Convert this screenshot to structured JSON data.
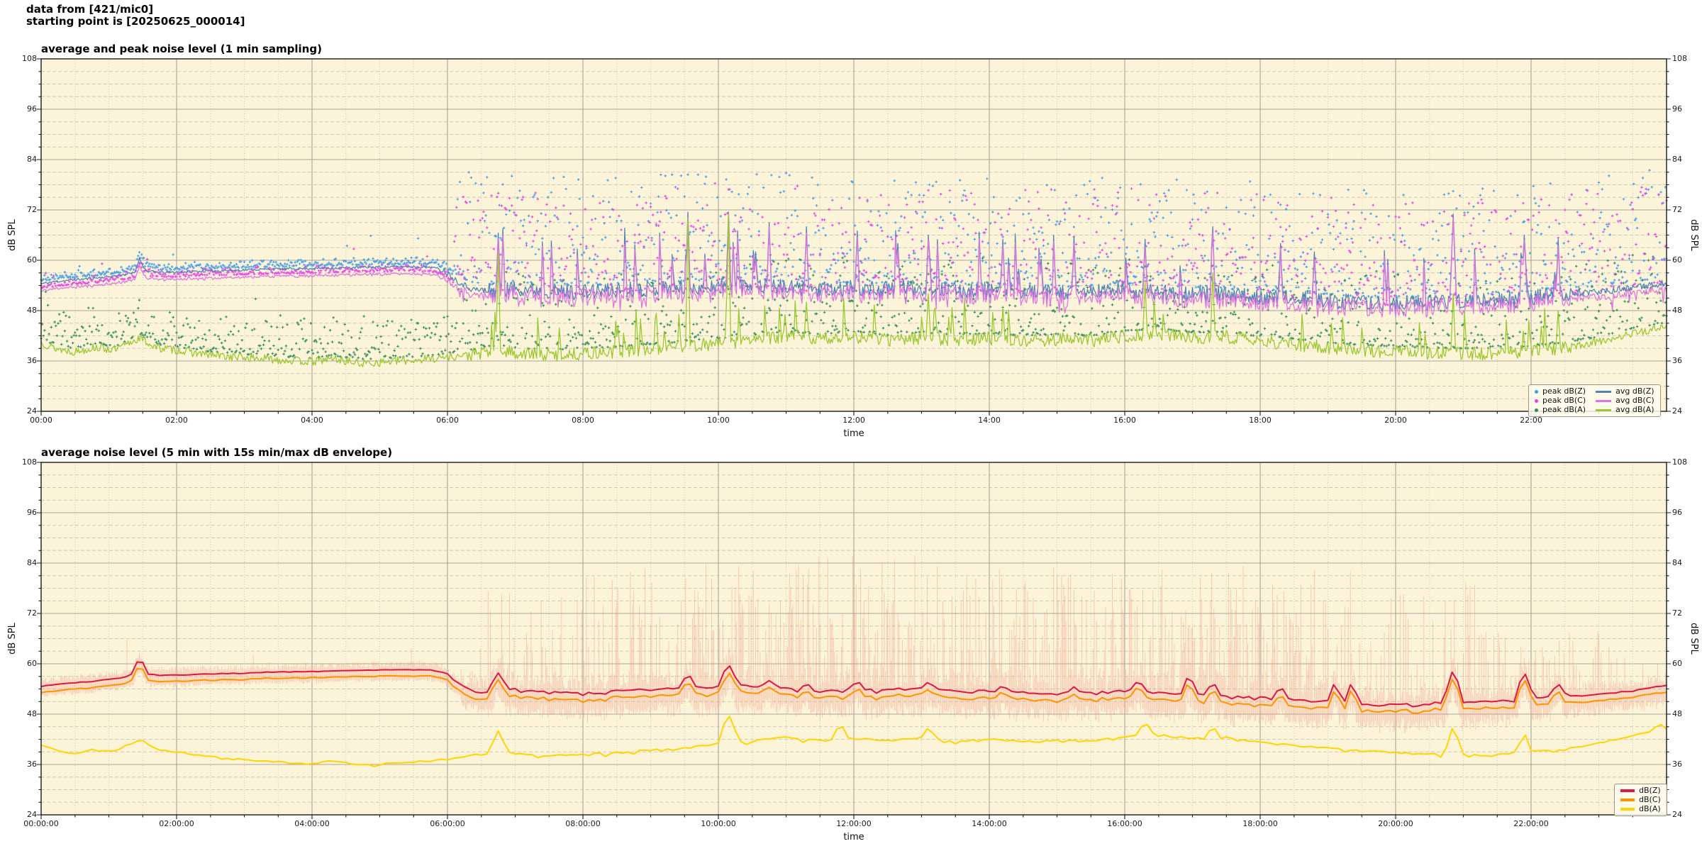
{
  "header": {
    "line1": "data from [421/mic0]",
    "line2": "starting point is [20250625_000014]"
  },
  "style": {
    "plot_bg": "#fcf4d8",
    "grid_major": "#a9a59b",
    "grid_minor": "#ccc8ba",
    "spine": "#1a1a1a",
    "tick_color": "#1a1a1a"
  },
  "anchors": {
    "z": [
      [
        0,
        54.4
      ],
      [
        0.2,
        54.9
      ],
      [
        0.45,
        55.3
      ],
      [
        0.7,
        55.6
      ],
      [
        1.0,
        56.1
      ],
      [
        1.2,
        56.5
      ],
      [
        1.38,
        57.0
      ],
      [
        1.45,
        60.4
      ],
      [
        1.55,
        57.4
      ],
      [
        1.8,
        57.1
      ],
      [
        2.2,
        57.3
      ],
      [
        2.6,
        57.5
      ],
      [
        3.0,
        57.7
      ],
      [
        3.4,
        57.9
      ],
      [
        3.8,
        58.0
      ],
      [
        4.2,
        58.1
      ],
      [
        4.6,
        58.25
      ],
      [
        5.0,
        58.4
      ],
      [
        5.4,
        58.5
      ],
      [
        5.75,
        58.4
      ],
      [
        5.95,
        57.6
      ],
      [
        6.15,
        55.0
      ],
      [
        6.35,
        53.2
      ],
      [
        6.55,
        52.6
      ],
      [
        6.75,
        53.0
      ],
      [
        7.0,
        53.4
      ],
      [
        7.3,
        53.0
      ],
      [
        7.6,
        52.6
      ],
      [
        8.0,
        52.4
      ],
      [
        8.4,
        52.8
      ],
      [
        8.8,
        53.2
      ],
      [
        9.2,
        53.4
      ],
      [
        9.6,
        53.6
      ],
      [
        10.0,
        54.0
      ],
      [
        10.4,
        54.2
      ],
      [
        10.8,
        53.8
      ],
      [
        11.2,
        53.2
      ],
      [
        11.6,
        52.8
      ],
      [
        12.0,
        53.4
      ],
      [
        12.4,
        53.0
      ],
      [
        12.8,
        53.6
      ],
      [
        13.2,
        53.2
      ],
      [
        13.6,
        52.8
      ],
      [
        14.0,
        53.0
      ],
      [
        14.4,
        52.6
      ],
      [
        14.8,
        52.4
      ],
      [
        15.2,
        52.2
      ],
      [
        15.6,
        52.6
      ],
      [
        16.0,
        53.0
      ],
      [
        16.4,
        52.6
      ],
      [
        16.8,
        52.2
      ],
      [
        17.2,
        52.0
      ],
      [
        17.6,
        51.6
      ],
      [
        18.0,
        51.4
      ],
      [
        18.4,
        51.0
      ],
      [
        18.8,
        50.6
      ],
      [
        19.2,
        50.2
      ],
      [
        19.6,
        49.8
      ],
      [
        20.0,
        49.6
      ],
      [
        20.4,
        49.8
      ],
      [
        20.8,
        50.4
      ],
      [
        21.2,
        50.2
      ],
      [
        21.6,
        50.6
      ],
      [
        22.0,
        51.2
      ],
      [
        22.4,
        52.0
      ],
      [
        22.8,
        52.2
      ],
      [
        23.2,
        52.8
      ],
      [
        23.6,
        53.6
      ],
      [
        24,
        54.6
      ]
    ],
    "a": [
      [
        0,
        40.5
      ],
      [
        0.2,
        39.0
      ],
      [
        0.5,
        38.2
      ],
      [
        0.8,
        39.3
      ],
      [
        1.1,
        38.6
      ],
      [
        1.45,
        41.5
      ],
      [
        1.7,
        39.2
      ],
      [
        2.0,
        38.6
      ],
      [
        2.4,
        37.6
      ],
      [
        2.8,
        37.0
      ],
      [
        3.2,
        36.6
      ],
      [
        3.6,
        36.2
      ],
      [
        4.0,
        35.8
      ],
      [
        4.3,
        36.6
      ],
      [
        4.7,
        35.4
      ],
      [
        5.1,
        35.8
      ],
      [
        5.5,
        36.2
      ],
      [
        5.9,
        36.8
      ],
      [
        6.2,
        37.2
      ],
      [
        6.5,
        37.8
      ],
      [
        6.75,
        38.5
      ],
      [
        7.1,
        37.8
      ],
      [
        7.5,
        37.4
      ],
      [
        8.0,
        37.8
      ],
      [
        8.5,
        38.2
      ],
      [
        9.0,
        38.8
      ],
      [
        9.5,
        39.4
      ],
      [
        10.0,
        40.2
      ],
      [
        10.5,
        41.0
      ],
      [
        11.0,
        41.8
      ],
      [
        11.5,
        41.2
      ],
      [
        12.0,
        41.8
      ],
      [
        12.5,
        41.0
      ],
      [
        13.0,
        41.6
      ],
      [
        13.5,
        41.0
      ],
      [
        14.0,
        41.4
      ],
      [
        14.5,
        40.8
      ],
      [
        15.0,
        41.2
      ],
      [
        15.5,
        40.8
      ],
      [
        16.0,
        42.0
      ],
      [
        16.5,
        42.4
      ],
      [
        17.0,
        41.6
      ],
      [
        17.5,
        41.8
      ],
      [
        18.0,
        40.6
      ],
      [
        18.5,
        40.0
      ],
      [
        19.0,
        39.2
      ],
      [
        19.5,
        38.6
      ],
      [
        20.0,
        38.2
      ],
      [
        20.5,
        38.0
      ],
      [
        21.0,
        37.8
      ],
      [
        21.5,
        37.8
      ],
      [
        22.0,
        38.4
      ],
      [
        22.5,
        39.2
      ],
      [
        23.0,
        40.6
      ],
      [
        23.5,
        42.6
      ],
      [
        24,
        44.0
      ]
    ]
  },
  "chart_data": [
    {
      "type": "line+scatter",
      "title": "average and peak noise level (1 min sampling)",
      "xlabel": "time",
      "ylabel": "dB SPL",
      "ylabel_right": "dB SPL",
      "xlim_hours": [
        0,
        24
      ],
      "ylim": [
        24,
        108
      ],
      "yticks": [
        24,
        36,
        48,
        60,
        72,
        84,
        96,
        108
      ],
      "y_minor_step": 3,
      "xtick_hours": [
        0,
        2,
        4,
        6,
        8,
        10,
        12,
        14,
        16,
        18,
        20,
        22
      ],
      "xtick_labels": [
        "00:00",
        "02:00",
        "04:00",
        "06:00",
        "08:00",
        "10:00",
        "12:00",
        "14:00",
        "16:00",
        "18:00",
        "20:00",
        "22:00"
      ],
      "x_minor_step_hours": 0.5,
      "grid": true,
      "legend_position": "lower right",
      "scatter": [
        {
          "label": "peak dB(Z)",
          "color": "#3f9be8",
          "anchors": "z",
          "extra_off": 0,
          "split": 6.1,
          "off_n": 0.6,
          "spread_n": 1.7,
          "expo_n": 2,
          "off_d": 1.5,
          "spread_d": 26,
          "expo_d": 2.2,
          "cap": 86,
          "seed": 21
        },
        {
          "label": "peak dB(C)",
          "color": "#e83ce8",
          "anchors": "z",
          "extra_off": -1.6,
          "split": 6.1,
          "off_n": 0.5,
          "spread_n": 1.7,
          "expo_n": 2,
          "off_d": 1.2,
          "spread_d": 25,
          "expo_d": 2.2,
          "cap": 85,
          "seed": 22
        },
        {
          "label": "peak dB(A)",
          "color": "#2f8b5a",
          "anchors": "a",
          "extra_off": 0,
          "split": 6.1,
          "off_n": 0.8,
          "spread_n": 9,
          "expo_n": 2,
          "off_d": 1.2,
          "spread_d": 18,
          "expo_d": 2.2,
          "cap": 66,
          "seed": 23
        }
      ],
      "lines": [
        {
          "key": "avgZ",
          "label": "avg dB(Z)",
          "color": "#4f86b8",
          "width": 1.3,
          "anchors": "z",
          "seed": 11,
          "noise": [
            [
              0,
              5.9,
              0.3
            ],
            [
              5.9,
              6.5,
              0.7
            ],
            [
              6.5,
              22.6,
              1.9
            ],
            [
              22.6,
              24,
              0.8
            ]
          ],
          "spikes": [
            [
              6.75,
              66.5,
              2
            ],
            [
              9.55,
              71.5,
              2
            ],
            [
              10.15,
              71.5,
              2
            ],
            [
              10.75,
              69,
              2
            ],
            [
              11.3,
              68,
              2
            ],
            [
              12.05,
              67,
              2
            ],
            [
              12.65,
              64,
              2
            ],
            [
              13.1,
              66,
              2
            ],
            [
              14.2,
              65,
              2
            ],
            [
              15.25,
              64,
              2
            ],
            [
              16.3,
              65,
              2
            ],
            [
              17.3,
              68,
              2
            ],
            [
              18.3,
              64,
              2
            ],
            [
              18.8,
              62,
              2
            ],
            [
              20.85,
              71,
              3
            ],
            [
              21.9,
              66,
              3
            ],
            [
              22.4,
              65,
              2
            ]
          ],
          "rspikes": {
            "p": 0.05,
            "lo": 5,
            "hi": 15,
            "from": 6.5,
            "to": 22.6
          }
        },
        {
          "key": "avgC",
          "label": "avg dB(C)",
          "color": "#df76df",
          "width": 1.3,
          "seed": 12,
          "derive": {
            "from": "avgZ",
            "off_night": 1.7,
            "off_day": 1.3,
            "split": 6.1,
            "jitter_night": 0.15,
            "jitter_day": 0.45,
            "dip_p": 0.06,
            "dip_min": 0.5,
            "dip_max": 2.5
          }
        },
        {
          "key": "avgA",
          "label": "avg dB(A)",
          "color": "#9cc832",
          "width": 1.3,
          "anchors": "a",
          "seed": 13,
          "noise": [
            [
              0,
              6.3,
              1.0
            ],
            [
              6.3,
              22.6,
              1.6
            ],
            [
              22.6,
              24,
              0.9
            ]
          ],
          "spikes": [
            [
              6.75,
              62,
              2
            ],
            [
              9.55,
              70,
              2
            ],
            [
              10.15,
              71,
              2
            ],
            [
              11.3,
              50,
              2
            ],
            [
              13.1,
              52,
              2
            ],
            [
              16.3,
              55,
              2
            ],
            [
              17.3,
              57,
              2
            ],
            [
              20.85,
              52,
              2
            ],
            [
              22.4,
              48,
              2
            ]
          ],
          "rspikes": {
            "p": 0.04,
            "lo": 4,
            "hi": 10,
            "from": 6.5,
            "to": 22.6
          }
        }
      ],
      "legend_entries_order": [
        "peak dB(Z)",
        "peak dB(C)",
        "peak dB(A)",
        "avg dB(Z)",
        "avg dB(C)",
        "avg dB(A)"
      ]
    },
    {
      "type": "line+envelope",
      "title": "average noise level (5 min with 15s min/max dB envelope)",
      "xlabel": "time",
      "ylabel": "dB SPL",
      "ylabel_right": "dB SPL",
      "xlim_hours": [
        0,
        24
      ],
      "ylim": [
        24,
        108
      ],
      "yticks": [
        24,
        36,
        48,
        60,
        72,
        84,
        96,
        108
      ],
      "y_minor_step": 3,
      "xtick_hours": [
        0,
        2,
        4,
        6,
        8,
        10,
        12,
        14,
        16,
        18,
        20,
        22
      ],
      "xtick_labels": [
        "00:00:00",
        "02:00:00",
        "04:00:00",
        "06:00:00",
        "08:00:00",
        "10:00:00",
        "12:00:00",
        "14:00:00",
        "16:00:00",
        "18:00:00",
        "20:00:00",
        "22:00:00"
      ],
      "x_minor_step_hours": 0.5,
      "grid": true,
      "legend_position": "lower right",
      "envelope": {
        "color": "#eb9180",
        "opacity": 0.42,
        "seed": 41,
        "segments": [
          [
            0,
            6.2,
            0.012,
            62,
            66,
            0.8,
            2.2,
            0.4,
            1.2
          ],
          [
            6.2,
            6.6,
            0.15,
            55,
            70,
            1,
            5,
            1,
            3
          ],
          [
            6.6,
            7.6,
            0.28,
            56,
            80,
            1,
            5,
            1.5,
            4
          ],
          [
            7.6,
            9.5,
            0.3,
            56,
            84,
            1,
            5,
            1.5,
            4
          ],
          [
            9.5,
            11,
            0.45,
            58,
            84,
            1,
            6,
            1.5,
            4.5
          ],
          [
            11,
            13,
            0.55,
            58,
            86,
            1,
            6,
            1.5,
            4.5
          ],
          [
            13,
            15,
            0.5,
            56,
            84,
            1,
            6,
            1.5,
            4.5
          ],
          [
            15,
            16.5,
            0.5,
            56,
            82,
            1,
            6,
            1.5,
            4.5
          ],
          [
            16.5,
            17.7,
            0.6,
            56,
            84,
            1,
            6,
            1.5,
            4.5
          ],
          [
            17.7,
            19.4,
            0.45,
            56,
            84,
            1,
            6,
            1.5,
            4.5
          ],
          [
            19.4,
            20.6,
            0.25,
            54,
            78,
            1,
            5,
            1.5,
            4
          ],
          [
            20.6,
            21.2,
            0.3,
            56,
            80,
            1,
            5,
            1.5,
            4
          ],
          [
            21.2,
            23.2,
            0.33,
            52,
            68,
            1,
            4,
            1,
            3.5
          ],
          [
            23.2,
            24,
            0.2,
            52,
            62,
            1,
            3,
            1,
            3
          ]
        ]
      },
      "lines": [
        {
          "key": "a5",
          "label": "dB(A)",
          "color": "#fed501",
          "width": 2,
          "anchors": "a",
          "seed": 33,
          "noise": [
            [
              0,
              6.3,
              0.5
            ],
            [
              6.3,
              22.6,
              0.8
            ],
            [
              22.6,
              24,
              0.5
            ]
          ],
          "spikes": [
            [
              6.75,
              44,
              6
            ],
            [
              10.15,
              47.5,
              8
            ],
            [
              11.8,
              45,
              6
            ],
            [
              13.1,
              44.5,
              6
            ],
            [
              16.3,
              45.5,
              8
            ],
            [
              17.3,
              44.5,
              6
            ],
            [
              20.85,
              44.5,
              6
            ],
            [
              21.9,
              43,
              5
            ],
            [
              23.9,
              45.5,
              6
            ]
          ]
        },
        {
          "key": "c5",
          "label": "dB(C)",
          "color": "#ff9300",
          "width": 2,
          "seed": 32,
          "derive": {
            "from": "z5",
            "off_night": 1.5,
            "off_day": 1.6,
            "split": 6.1,
            "jitter_night": 0.1,
            "jitter_day": 0.25,
            "dip_p": 0.03,
            "dip_min": 0.3,
            "dip_max": 1.2
          }
        },
        {
          "key": "z5",
          "label": "dB(Z)",
          "color": "#dc1745",
          "width": 2,
          "anchors": "z",
          "seed": 31,
          "noise": [
            [
              0,
              5.9,
              0.18
            ],
            [
              5.9,
              6.5,
              0.4
            ],
            [
              6.5,
              22.6,
              0.8
            ],
            [
              22.6,
              24,
              0.3
            ]
          ],
          "spikes": [
            [
              1.45,
              60.4,
              6
            ],
            [
              6.75,
              57.8,
              7
            ],
            [
              9.55,
              57,
              7
            ],
            [
              10.15,
              59.5,
              8
            ],
            [
              10.75,
              56,
              7
            ],
            [
              11.3,
              55,
              6
            ],
            [
              12.05,
              55.5,
              6
            ],
            [
              13.1,
              55.5,
              7
            ],
            [
              14.2,
              54.5,
              6
            ],
            [
              15.25,
              54.5,
              6
            ],
            [
              16.2,
              55.5,
              8
            ],
            [
              16.95,
              56.5,
              6
            ],
            [
              17.3,
              55,
              6
            ],
            [
              18.3,
              54,
              6
            ],
            [
              19.1,
              55,
              5
            ],
            [
              19.35,
              55,
              5
            ],
            [
              20.85,
              58,
              7
            ],
            [
              21.9,
              57.5,
              7
            ],
            [
              22.4,
              55,
              6
            ]
          ]
        }
      ],
      "legend_entries_order": [
        "dB(Z)",
        "dB(C)",
        "dB(A)"
      ]
    }
  ]
}
